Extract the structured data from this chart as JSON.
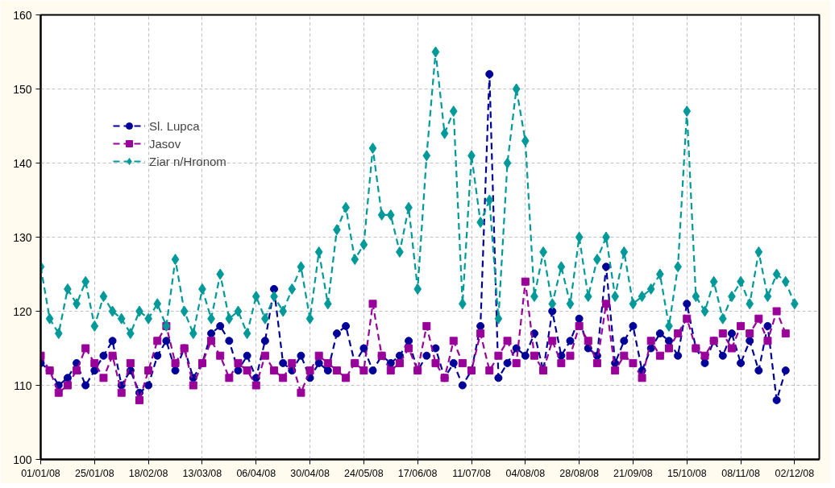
{
  "chart_data": {
    "type": "line",
    "line_style": "dashed",
    "grid": true,
    "legend": "top left",
    "x": [
      "2008-01-01",
      "2008-01-05",
      "2008-01-09",
      "2008-01-13",
      "2008-01-17",
      "2008-01-21",
      "2008-01-25",
      "2008-01-29",
      "2008-02-02",
      "2008-02-06",
      "2008-02-10",
      "2008-02-14",
      "2008-02-18",
      "2008-02-22",
      "2008-02-26",
      "2008-03-01",
      "2008-03-05",
      "2008-03-09",
      "2008-03-13",
      "2008-03-17",
      "2008-03-21",
      "2008-03-25",
      "2008-03-29",
      "2008-04-02",
      "2008-04-06",
      "2008-04-10",
      "2008-04-14",
      "2008-04-18",
      "2008-04-22",
      "2008-04-26",
      "2008-04-30",
      "2008-05-04",
      "2008-05-08",
      "2008-05-12",
      "2008-05-16",
      "2008-05-20",
      "2008-05-24",
      "2008-05-28",
      "2008-06-01",
      "2008-06-05",
      "2008-06-09",
      "2008-06-13",
      "2008-06-17",
      "2008-06-21",
      "2008-06-25",
      "2008-06-29",
      "2008-07-03",
      "2008-07-07",
      "2008-07-11",
      "2008-07-15",
      "2008-07-19",
      "2008-07-23",
      "2008-07-27",
      "2008-07-31",
      "2008-08-04",
      "2008-08-08",
      "2008-08-12",
      "2008-08-16",
      "2008-08-20",
      "2008-08-24",
      "2008-08-28",
      "2008-09-01",
      "2008-09-05",
      "2008-09-09",
      "2008-09-13",
      "2008-09-17",
      "2008-09-21",
      "2008-09-25",
      "2008-09-29",
      "2008-10-03",
      "2008-10-07",
      "2008-10-11",
      "2008-10-15",
      "2008-10-19",
      "2008-10-23",
      "2008-10-27",
      "2008-10-31",
      "2008-11-04",
      "2008-11-08",
      "2008-11-12",
      "2008-11-16",
      "2008-11-20",
      "2008-11-24",
      "2008-11-28",
      "2008-12-02"
    ],
    "series": [
      {
        "name": "Sl. Lupca",
        "color": "#000099",
        "marker": "circle",
        "values": [
          113,
          112,
          110,
          111,
          113,
          110,
          112,
          114,
          116,
          110,
          112,
          109,
          110,
          114,
          116,
          112,
          115,
          111,
          113,
          117,
          118,
          116,
          112,
          114,
          111,
          116,
          123,
          113,
          112,
          114,
          111,
          113,
          112,
          117,
          118,
          113,
          115,
          112,
          114,
          113,
          114,
          116,
          112,
          114,
          115,
          111,
          113,
          110,
          112,
          118,
          152,
          111,
          113,
          115,
          114,
          117,
          112,
          120,
          114,
          116,
          119,
          115,
          114,
          126,
          113,
          116,
          118,
          112,
          115,
          117,
          116,
          114,
          121,
          115,
          113,
          116,
          114,
          117,
          113,
          116,
          112,
          118,
          108,
          112,
          null
        ]
      },
      {
        "name": "Jasov",
        "color": "#990099",
        "marker": "square",
        "values": [
          114,
          112,
          109,
          110,
          112,
          115,
          113,
          111,
          114,
          109,
          113,
          108,
          112,
          116,
          118,
          113,
          115,
          110,
          113,
          116,
          114,
          111,
          113,
          112,
          110,
          114,
          112,
          111,
          113,
          109,
          112,
          114,
          113,
          112,
          111,
          113,
          112,
          121,
          114,
          112,
          113,
          115,
          112,
          118,
          113,
          111,
          116,
          113,
          112,
          117,
          112,
          114,
          116,
          113,
          124,
          114,
          112,
          116,
          113,
          114,
          118,
          116,
          113,
          121,
          112,
          114,
          113,
          111,
          116,
          114,
          115,
          117,
          119,
          115,
          114,
          116,
          117,
          115,
          118,
          117,
          119,
          116,
          120,
          117,
          null
        ]
      },
      {
        "name": "Ziar n/Hronom",
        "color": "#009999",
        "marker": "diamond",
        "values": [
          126,
          119,
          117,
          123,
          121,
          124,
          118,
          122,
          120,
          119,
          117,
          120,
          119,
          121,
          118,
          127,
          120,
          117,
          123,
          119,
          125,
          119,
          120,
          117,
          122,
          119,
          122,
          120,
          123,
          126,
          119,
          128,
          121,
          131,
          134,
          127,
          129,
          142,
          133,
          133,
          128,
          134,
          123,
          141,
          155,
          144,
          147,
          121,
          141,
          132,
          135,
          119,
          140,
          150,
          143,
          122,
          128,
          121,
          126,
          121,
          130,
          122,
          127,
          130,
          122,
          128,
          121,
          122,
          123,
          125,
          118,
          126,
          147,
          122,
          120,
          124,
          119,
          122,
          124,
          121,
          128,
          122,
          125,
          124,
          121
        ]
      }
    ],
    "xlim": [
      "2008-01-01",
      "2008-12-13"
    ],
    "xticks": [
      {
        "value": "2008-01-01",
        "label": "01/01/08"
      },
      {
        "value": "2008-01-25",
        "label": "25/01/08"
      },
      {
        "value": "2008-02-18",
        "label": "18/02/08"
      },
      {
        "value": "2008-03-13",
        "label": "13/03/08"
      },
      {
        "value": "2008-04-06",
        "label": "06/04/08"
      },
      {
        "value": "2008-04-30",
        "label": "30/04/08"
      },
      {
        "value": "2008-05-24",
        "label": "24/05/08"
      },
      {
        "value": "2008-06-17",
        "label": "17/06/08"
      },
      {
        "value": "2008-07-11",
        "label": "11/07/08"
      },
      {
        "value": "2008-08-04",
        "label": "04/08/08"
      },
      {
        "value": "2008-08-28",
        "label": "28/08/08"
      },
      {
        "value": "2008-09-21",
        "label": "21/09/08"
      },
      {
        "value": "2008-10-15",
        "label": "15/10/08"
      },
      {
        "value": "2008-11-08",
        "label": "08/11/08"
      },
      {
        "value": "2008-12-02",
        "label": "02/12/08"
      }
    ],
    "ylim": [
      100,
      160
    ],
    "yticks": [
      100,
      110,
      120,
      130,
      140,
      150,
      160
    ]
  }
}
